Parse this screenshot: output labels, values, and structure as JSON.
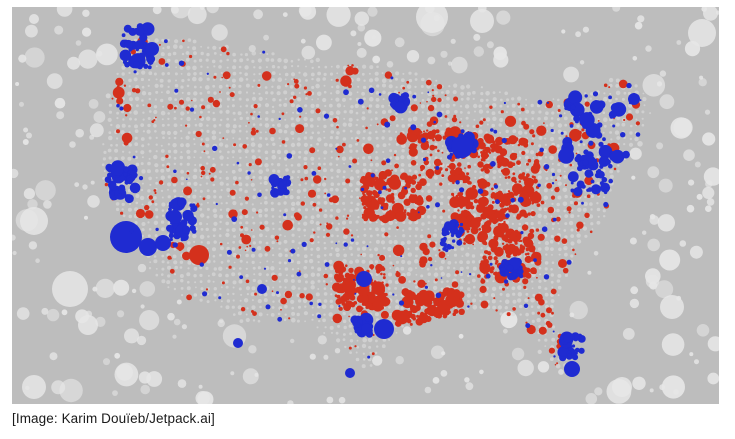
{
  "caption": "[Image: Karim Douïeb/Jetpack.ai]",
  "map": {
    "subject": "bubble-map-of-united-states",
    "colors": {
      "background": "#bdbdbd",
      "pale_bubble": "#e6e6e6",
      "democrat": "#1f2bd1",
      "republican": "#d4301c",
      "neutral_dot": "#d9d9d9"
    }
  }
}
